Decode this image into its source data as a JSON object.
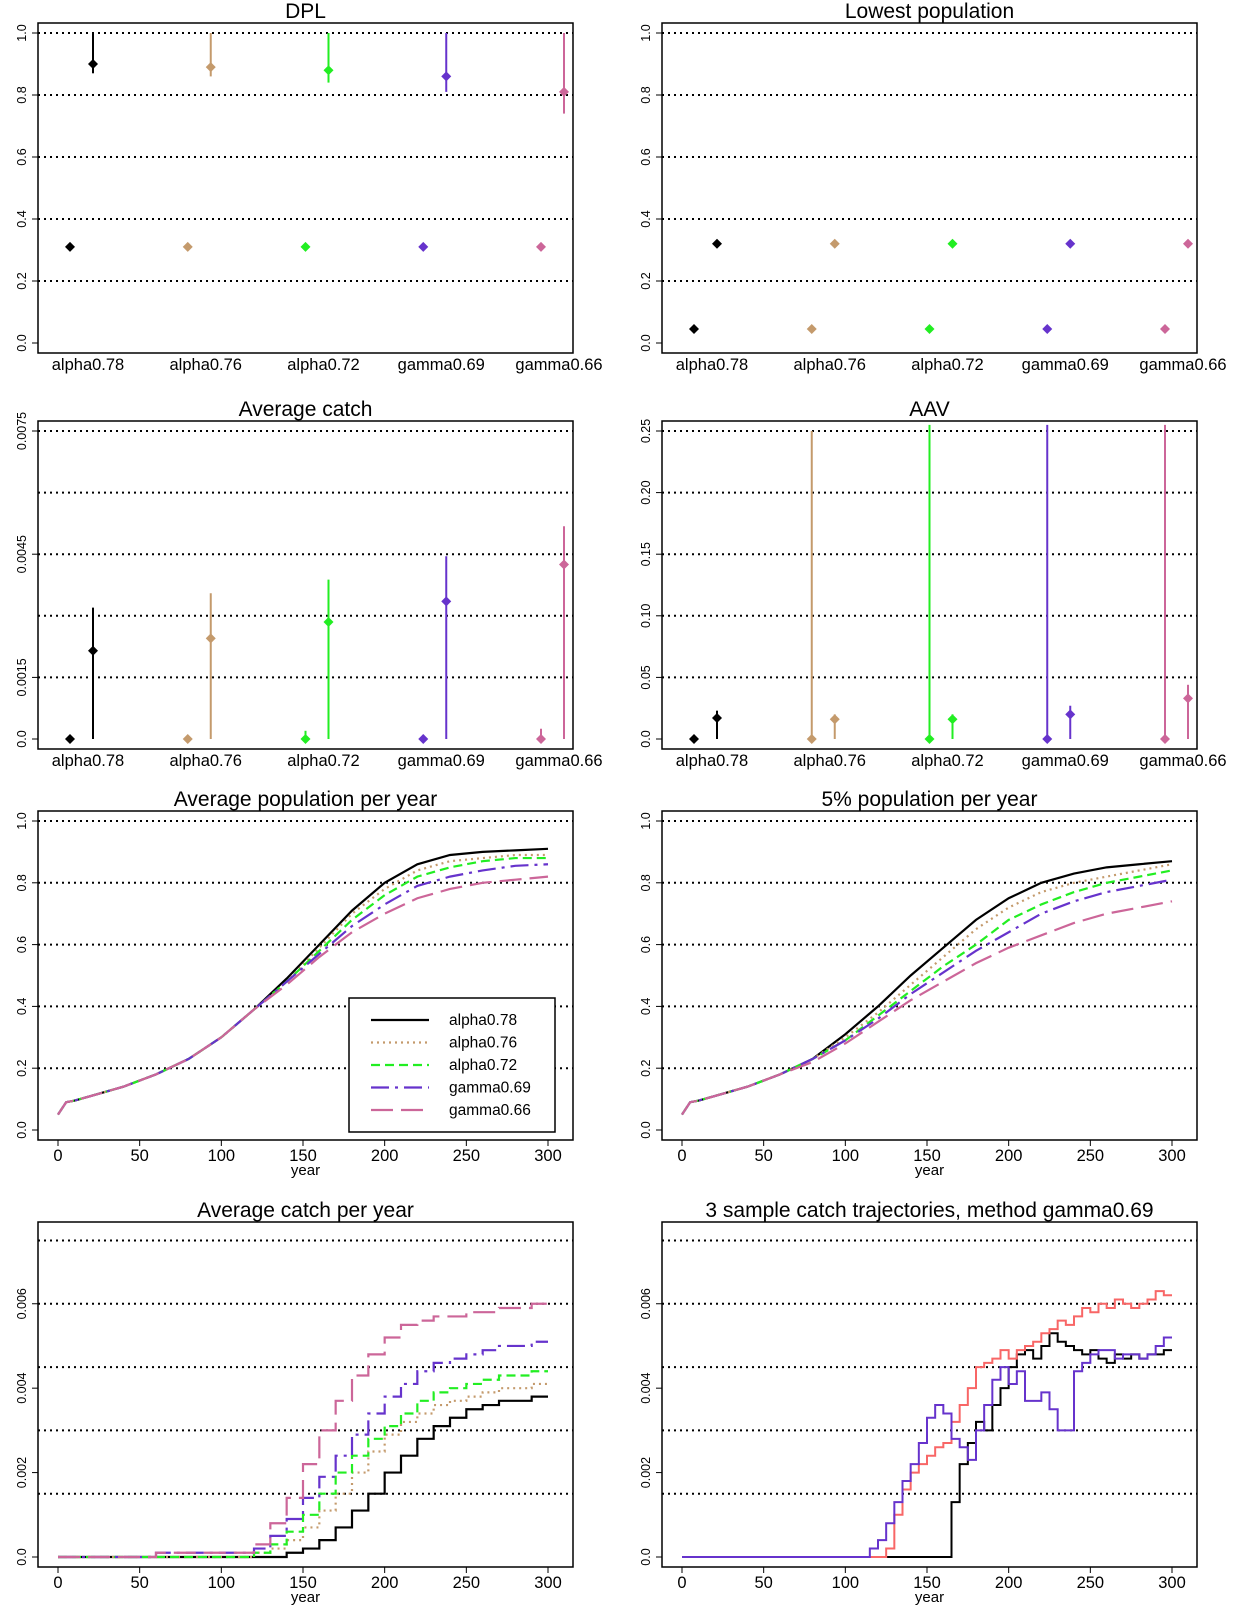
{
  "colors": {
    "alpha0.78": "#000000",
    "alpha0.76": "#c49a6c",
    "alpha0.72": "#22ee22",
    "gamma0.69": "#6633cc",
    "gamma0.66": "#cc6699",
    "sample_red": "#f86666"
  },
  "chart_data": [
    {
      "id": "dpl",
      "type": "interval",
      "title": "DPL",
      "categories": [
        "alpha0.78",
        "alpha0.76",
        "alpha0.72",
        "gamma0.69",
        "gamma0.66"
      ],
      "ylim": [
        0,
        1.0
      ],
      "yticks": [
        "0.0",
        "0.2",
        "0.4",
        "0.6",
        "0.8",
        "1.0"
      ],
      "gridlines": [
        0.2,
        0.4,
        0.6,
        0.8,
        1.0
      ],
      "series": [
        {
          "values": [
            0.31,
            0.31,
            0.31,
            0.31,
            0.31
          ],
          "low": [
            null,
            null,
            null,
            null,
            null
          ],
          "high": [
            null,
            null,
            null,
            null,
            null
          ]
        },
        {
          "values": [
            0.9,
            0.89,
            0.88,
            0.86,
            0.81
          ],
          "low": [
            0.87,
            0.86,
            0.84,
            0.81,
            0.74
          ],
          "high": [
            1.0,
            1.0,
            1.0,
            1.0,
            1.0
          ]
        }
      ]
    },
    {
      "id": "lowest",
      "type": "interval",
      "title": "Lowest population",
      "categories": [
        "alpha0.78",
        "alpha0.76",
        "alpha0.72",
        "gamma0.69",
        "gamma0.66"
      ],
      "ylim": [
        0,
        1.0
      ],
      "yticks": [
        "0.0",
        "0.2",
        "0.4",
        "0.6",
        "0.8",
        "1.0"
      ],
      "gridlines": [
        0.2,
        0.4,
        0.6,
        0.8,
        1.0
      ],
      "series": [
        {
          "values": [
            0.045,
            0.045,
            0.045,
            0.045,
            0.045
          ],
          "low": [
            null,
            null,
            null,
            null,
            null
          ],
          "high": [
            null,
            null,
            null,
            null,
            null
          ]
        },
        {
          "values": [
            0.32,
            0.32,
            0.32,
            0.32,
            0.32
          ],
          "low": [
            0.31,
            0.31,
            0.31,
            0.31,
            0.31
          ],
          "high": [
            0.33,
            0.33,
            0.33,
            0.33,
            0.33
          ]
        }
      ]
    },
    {
      "id": "avgcatch",
      "type": "interval",
      "title": "Average catch",
      "categories": [
        "alpha0.78",
        "alpha0.76",
        "alpha0.72",
        "gamma0.69",
        "gamma0.66"
      ],
      "ylim": [
        0,
        0.0075
      ],
      "yticks": [
        "0.0",
        "0.0015",
        "0.0045",
        "0.0075"
      ],
      "ytick_values": [
        0,
        0.0015,
        0.0045,
        0.0075
      ],
      "gridlines": [
        0.0015,
        0.003,
        0.0045,
        0.006,
        0.0075
      ],
      "series": [
        {
          "values": [
            0,
            0,
            0,
            0,
            0
          ],
          "low": [
            null,
            null,
            null,
            null,
            null
          ],
          "high": [
            null,
            0,
            0.0002,
            0.0001,
            0.00025
          ]
        },
        {
          "values": [
            0.00215,
            0.00245,
            0.00285,
            0.00335,
            0.00425
          ],
          "low": [
            0,
            0,
            0,
            0,
            0
          ],
          "high": [
            0.0032,
            0.00355,
            0.00388,
            0.00445,
            0.00518
          ]
        }
      ]
    },
    {
      "id": "aav",
      "type": "interval",
      "title": "AAV",
      "categories": [
        "alpha0.78",
        "alpha0.76",
        "alpha0.72",
        "gamma0.69",
        "gamma0.66"
      ],
      "ylim": [
        0,
        0.25
      ],
      "yticks": [
        "0.0",
        "0.05",
        "0.10",
        "0.15",
        "0.20",
        "0.25"
      ],
      "gridlines": [
        0.05,
        0.1,
        0.15,
        0.2,
        0.25
      ],
      "series": [
        {
          "values": [
            0,
            0,
            0,
            0,
            0
          ],
          "low": [
            null,
            null,
            null,
            null,
            null
          ],
          "high": [
            null,
            0.25,
            0.26,
            0.26,
            0.26
          ]
        },
        {
          "values": [
            0.017,
            0.016,
            0.016,
            0.02,
            0.033
          ],
          "low": [
            0,
            0,
            0,
            0,
            0
          ],
          "high": [
            0.023,
            0.02,
            0.02,
            0.027,
            0.044
          ]
        }
      ]
    },
    {
      "id": "avgpop",
      "type": "line",
      "title": "Average population per year",
      "xlabel": "year",
      "xlim": [
        0,
        300
      ],
      "xticks": [
        0,
        50,
        100,
        150,
        200,
        250,
        300
      ],
      "ylim": [
        0,
        1.0
      ],
      "yticks": [
        "0.0",
        "0.2",
        "0.4",
        "0.6",
        "0.8",
        "1.0"
      ],
      "gridlines": [
        0.2,
        0.4,
        0.6,
        0.8,
        1.0
      ],
      "legend": "bottom-right",
      "x": [
        0,
        5,
        10,
        20,
        40,
        60,
        80,
        100,
        120,
        140,
        160,
        180,
        200,
        220,
        240,
        260,
        280,
        300
      ],
      "series": [
        {
          "name": "alpha0.78",
          "values": [
            0.05,
            0.09,
            0.095,
            0.11,
            0.14,
            0.18,
            0.23,
            0.3,
            0.39,
            0.49,
            0.6,
            0.71,
            0.8,
            0.86,
            0.89,
            0.9,
            0.905,
            0.91
          ]
        },
        {
          "name": "alpha0.76",
          "values": [
            0.05,
            0.09,
            0.095,
            0.11,
            0.14,
            0.18,
            0.23,
            0.3,
            0.39,
            0.48,
            0.59,
            0.7,
            0.78,
            0.84,
            0.87,
            0.88,
            0.89,
            0.89
          ]
        },
        {
          "name": "alpha0.72",
          "values": [
            0.05,
            0.09,
            0.095,
            0.11,
            0.14,
            0.18,
            0.23,
            0.3,
            0.39,
            0.48,
            0.58,
            0.68,
            0.76,
            0.82,
            0.85,
            0.87,
            0.88,
            0.88
          ]
        },
        {
          "name": "gamma0.69",
          "values": [
            0.05,
            0.09,
            0.095,
            0.11,
            0.14,
            0.18,
            0.23,
            0.3,
            0.39,
            0.48,
            0.57,
            0.66,
            0.73,
            0.79,
            0.82,
            0.84,
            0.855,
            0.86
          ]
        },
        {
          "name": "gamma0.66",
          "values": [
            0.05,
            0.09,
            0.095,
            0.11,
            0.14,
            0.18,
            0.23,
            0.3,
            0.39,
            0.47,
            0.56,
            0.64,
            0.7,
            0.75,
            0.78,
            0.8,
            0.81,
            0.82
          ]
        }
      ]
    },
    {
      "id": "pop5",
      "type": "line",
      "title": "5% population per year",
      "xlabel": "year",
      "xlim": [
        0,
        300
      ],
      "xticks": [
        0,
        50,
        100,
        150,
        200,
        250,
        300
      ],
      "ylim": [
        0,
        1.0
      ],
      "yticks": [
        "0.0",
        "0.2",
        "0.4",
        "0.6",
        "0.8",
        "1.0"
      ],
      "gridlines": [
        0.2,
        0.4,
        0.6,
        0.8,
        1.0
      ],
      "x": [
        0,
        5,
        10,
        20,
        40,
        60,
        80,
        100,
        120,
        140,
        160,
        180,
        200,
        220,
        240,
        260,
        280,
        300
      ],
      "series": [
        {
          "name": "alpha0.78",
          "values": [
            0.05,
            0.09,
            0.095,
            0.11,
            0.14,
            0.18,
            0.23,
            0.31,
            0.4,
            0.5,
            0.59,
            0.68,
            0.75,
            0.8,
            0.83,
            0.85,
            0.86,
            0.87
          ]
        },
        {
          "name": "alpha0.76",
          "values": [
            0.05,
            0.09,
            0.095,
            0.11,
            0.14,
            0.18,
            0.23,
            0.3,
            0.38,
            0.47,
            0.56,
            0.65,
            0.72,
            0.77,
            0.8,
            0.82,
            0.84,
            0.86
          ]
        },
        {
          "name": "alpha0.72",
          "values": [
            0.05,
            0.09,
            0.095,
            0.11,
            0.14,
            0.18,
            0.23,
            0.29,
            0.37,
            0.45,
            0.53,
            0.6,
            0.68,
            0.73,
            0.77,
            0.8,
            0.82,
            0.84
          ]
        },
        {
          "name": "gamma0.69",
          "values": [
            0.05,
            0.09,
            0.095,
            0.11,
            0.14,
            0.18,
            0.23,
            0.29,
            0.36,
            0.44,
            0.51,
            0.58,
            0.64,
            0.7,
            0.74,
            0.77,
            0.79,
            0.81
          ]
        },
        {
          "name": "gamma0.66",
          "values": [
            0.05,
            0.09,
            0.095,
            0.11,
            0.14,
            0.18,
            0.22,
            0.28,
            0.35,
            0.42,
            0.48,
            0.54,
            0.59,
            0.63,
            0.67,
            0.7,
            0.72,
            0.74
          ]
        }
      ]
    },
    {
      "id": "catchyear",
      "type": "line",
      "step": true,
      "title": "Average catch per year",
      "xlabel": "year",
      "xlim": [
        0,
        300
      ],
      "xticks": [
        0,
        50,
        100,
        150,
        200,
        250,
        300
      ],
      "ylim": [
        0,
        0.0077
      ],
      "yticks": [
        "0.0",
        "0.002",
        "0.004",
        "0.006"
      ],
      "ytick_values": [
        0,
        0.002,
        0.004,
        0.006
      ],
      "gridlines": [
        0.0015,
        0.003,
        0.0045,
        0.006,
        0.0075
      ],
      "x": [
        0,
        60,
        100,
        120,
        130,
        140,
        150,
        160,
        170,
        180,
        190,
        200,
        210,
        220,
        230,
        240,
        250,
        260,
        270,
        280,
        290,
        300
      ],
      "series": [
        {
          "name": "alpha0.78",
          "values": [
            0,
            0,
            0,
            0,
            0,
            0.0001,
            0.0002,
            0.0004,
            0.0007,
            0.0011,
            0.0015,
            0.002,
            0.0024,
            0.0028,
            0.0031,
            0.0033,
            0.0035,
            0.0036,
            0.0037,
            0.0037,
            0.0038,
            0.0038
          ]
        },
        {
          "name": "alpha0.76",
          "values": [
            0,
            0,
            0,
            0.0001,
            0.0002,
            0.0004,
            0.0007,
            0.0011,
            0.0015,
            0.002,
            0.0025,
            0.0029,
            0.0032,
            0.0034,
            0.0036,
            0.0037,
            0.0038,
            0.0039,
            0.004,
            0.004,
            0.0041,
            0.0041
          ]
        },
        {
          "name": "alpha0.72",
          "values": [
            0,
            0,
            0,
            0.0001,
            0.0003,
            0.0006,
            0.001,
            0.0015,
            0.002,
            0.0024,
            0.0028,
            0.0031,
            0.0034,
            0.0037,
            0.0039,
            0.004,
            0.0041,
            0.0042,
            0.0043,
            0.0043,
            0.0044,
            0.0044
          ]
        },
        {
          "name": "gamma0.69",
          "values": [
            0,
            0.0001,
            0.0001,
            0.0002,
            0.0005,
            0.0009,
            0.0014,
            0.0019,
            0.0024,
            0.0029,
            0.0034,
            0.0038,
            0.0041,
            0.0044,
            0.0046,
            0.0047,
            0.0048,
            0.0049,
            0.005,
            0.005,
            0.0051,
            0.0051
          ]
        },
        {
          "name": "gamma0.66",
          "values": [
            0,
            0.0001,
            0.0001,
            0.0003,
            0.0008,
            0.0014,
            0.0022,
            0.003,
            0.0037,
            0.0043,
            0.0048,
            0.0052,
            0.0055,
            0.0056,
            0.0057,
            0.0057,
            0.0058,
            0.0058,
            0.0059,
            0.0059,
            0.006,
            0.0059
          ]
        }
      ]
    },
    {
      "id": "samples",
      "type": "line",
      "step": true,
      "title": "3 sample catch trajectories, method gamma0.69",
      "xlabel": "year",
      "xlim": [
        0,
        300
      ],
      "xticks": [
        0,
        50,
        100,
        150,
        200,
        250,
        300
      ],
      "ylim": [
        0,
        0.0077
      ],
      "yticks": [
        "0.0",
        "0.002",
        "0.004",
        "0.006"
      ],
      "ytick_values": [
        0,
        0.002,
        0.004,
        0.006
      ],
      "gridlines": [
        0.0015,
        0.003,
        0.0045,
        0.006,
        0.0075
      ],
      "x": [
        0,
        110,
        115,
        120,
        125,
        130,
        135,
        140,
        145,
        150,
        155,
        160,
        165,
        170,
        175,
        180,
        185,
        190,
        195,
        200,
        205,
        210,
        215,
        220,
        225,
        230,
        235,
        240,
        245,
        250,
        255,
        260,
        265,
        270,
        275,
        280,
        285,
        290,
        295,
        300
      ],
      "series": [
        {
          "values": [
            0,
            0,
            0,
            0,
            0,
            0,
            0,
            0,
            0,
            0,
            0,
            0,
            0.0013,
            0.0022,
            0.0027,
            0.0032,
            0.003,
            0.0036,
            0.004,
            0.0045,
            0.0048,
            0.0049,
            0.0047,
            0.005,
            0.0053,
            0.0051,
            0.005,
            0.0049,
            0.0048,
            0.0049,
            0.0047,
            0.0046,
            0.0048,
            0.0047,
            0.0048,
            0.0047,
            0.0048,
            0.0048,
            0.0049,
            0.0049
          ]
        },
        {
          "values": [
            0,
            0,
            0,
            0,
            0.0002,
            0.001,
            0.0016,
            0.002,
            0.0022,
            0.0024,
            0.0026,
            0.0027,
            0.0032,
            0.0036,
            0.004,
            0.0045,
            0.0046,
            0.0047,
            0.0049,
            0.0047,
            0.0049,
            0.005,
            0.0051,
            0.0053,
            0.0054,
            0.0056,
            0.0055,
            0.0057,
            0.0059,
            0.0058,
            0.006,
            0.0059,
            0.0061,
            0.006,
            0.0059,
            0.006,
            0.0061,
            0.0063,
            0.0062,
            0.0062
          ]
        },
        {
          "values": [
            0,
            0,
            0.0002,
            0.0004,
            0.0008,
            0.0013,
            0.0018,
            0.0022,
            0.0027,
            0.0033,
            0.0036,
            0.0034,
            0.0028,
            0.0026,
            0.0023,
            0.003,
            0.0036,
            0.0042,
            0.0045,
            0.0041,
            0.0044,
            0.0037,
            0.0037,
            0.0039,
            0.0035,
            0.003,
            0.003,
            0.0044,
            0.0046,
            0.0048,
            0.0049,
            0.0049,
            0.0047,
            0.0048,
            0.0048,
            0.0047,
            0.0048,
            0.005,
            0.0052,
            0.0052
          ]
        }
      ]
    }
  ]
}
